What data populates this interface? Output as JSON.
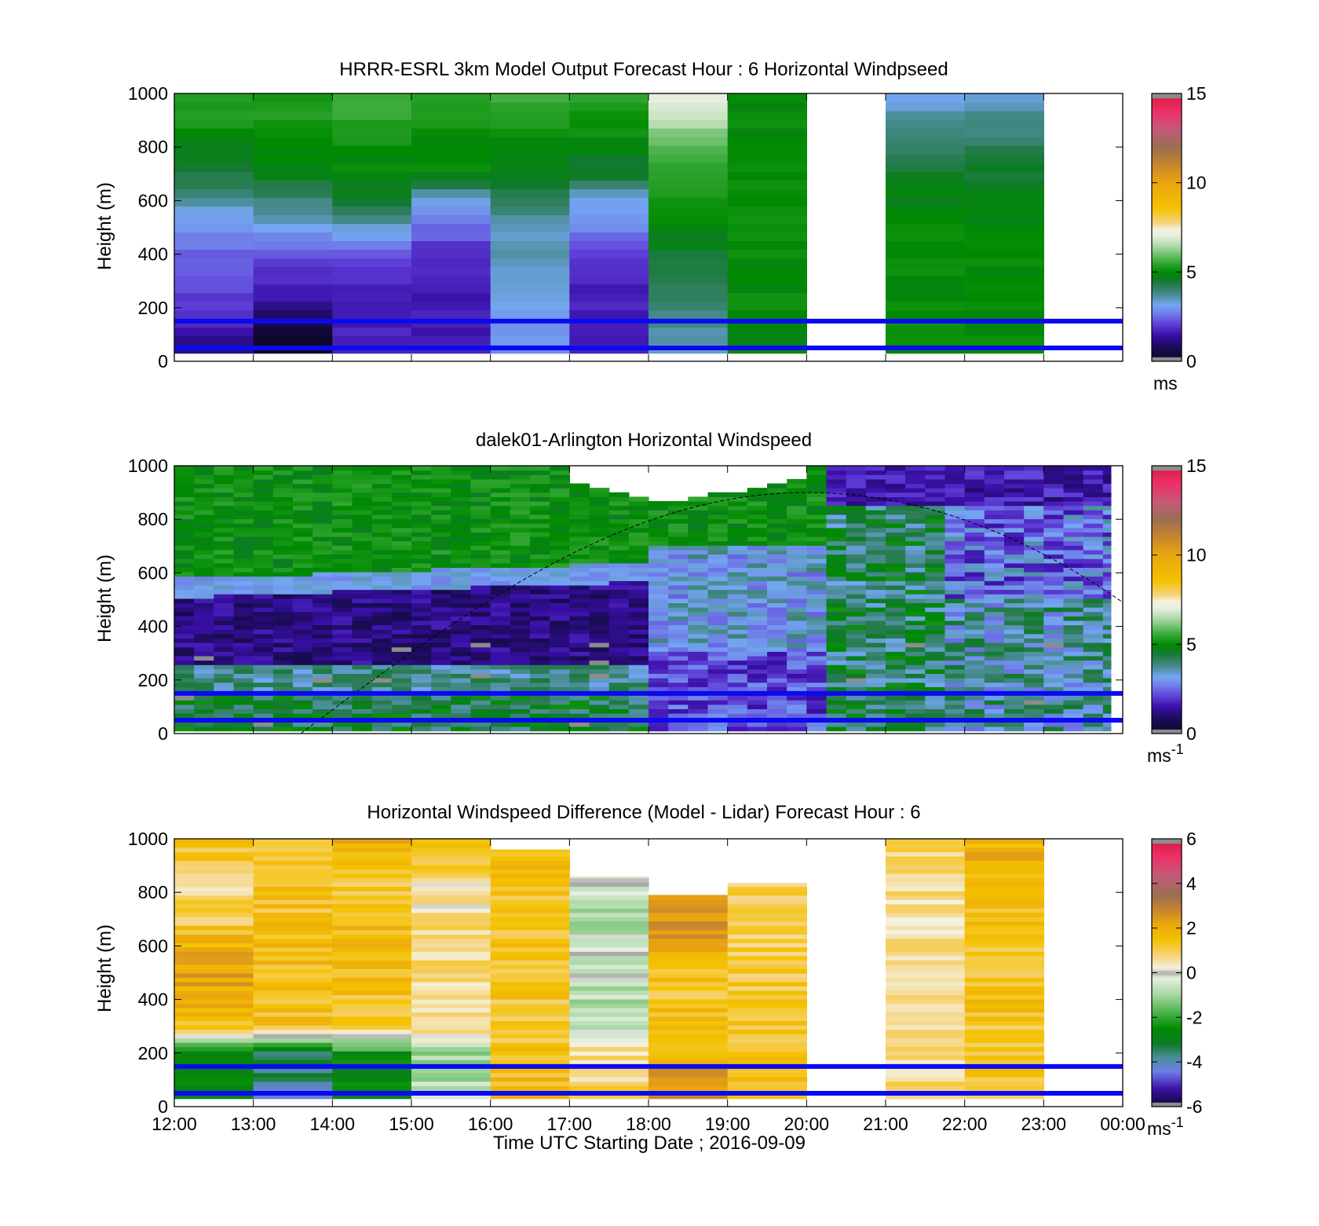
{
  "figure": {
    "xlabel": "Time UTC  Starting Date ; 2016-09-09",
    "xticks": [
      "12:00",
      "13:00",
      "14:00",
      "15:00",
      "16:00",
      "17:00",
      "18:00",
      "19:00",
      "20:00",
      "21:00",
      "22:00",
      "23:00",
      "00:00"
    ]
  },
  "chart_data": [
    {
      "type": "heatmap",
      "title": "HRRR-ESRL 3km Model Output   Forecast Hour : 6 Horizontal Windpseed",
      "ylabel": "Height (m)",
      "ylim": [
        0,
        1000
      ],
      "yticks": [
        "0",
        "200",
        "400",
        "600",
        "800",
        "1000"
      ],
      "x_hours": [
        12,
        24
      ],
      "colorbar": {
        "range": [
          0,
          15
        ],
        "ticks": [
          "0",
          "5",
          "10",
          "15"
        ],
        "unit": "ms"
      },
      "reference_lines_m": [
        50,
        150
      ],
      "columns": [
        {
          "hour": 12,
          "top": 1000,
          "profile": [
            0.9,
            1.4,
            2.0,
            2.2,
            2.4,
            3.0,
            3.6,
            4.5,
            4.8,
            5.2,
            5.4
          ]
        },
        {
          "hour": 13,
          "top": 1000,
          "profile": [
            -0.2,
            0.3,
            1.2,
            1.8,
            2.2,
            3.2,
            4.0,
            4.8,
            5.0,
            5.2,
            5.4
          ]
        },
        {
          "hour": 14,
          "top": 1000,
          "profile": [
            1.8,
            1.8,
            1.7,
            1.8,
            2.2,
            3.5,
            4.6,
            4.9,
            5.0,
            5.5,
            5.6
          ]
        },
        {
          "hour": 15,
          "top": 1000,
          "profile": [
            1.7,
            1.6,
            1.6,
            1.7,
            1.8,
            2.6,
            3.2,
            5.0,
            5.0,
            5.2,
            5.2
          ]
        },
        {
          "hour": 16,
          "top": 1000,
          "profile": [
            2.6,
            3.0,
            3.2,
            3.3,
            3.5,
            3.5,
            4.2,
            4.8,
            5.0,
            5.2,
            5.6
          ]
        },
        {
          "hour": 17,
          "top": 1000,
          "profile": [
            1.6,
            1.7,
            1.7,
            1.8,
            2.2,
            2.8,
            3.2,
            4.6,
            4.8,
            5.2,
            5.3
          ]
        },
        {
          "hour": 18,
          "top": 1000,
          "profile": [
            3.4,
            3.6,
            4.0,
            4.2,
            4.6,
            5.0,
            5.2,
            5.4,
            5.8,
            6.5,
            7.2
          ]
        },
        {
          "hour": 19,
          "top": 1000,
          "profile": [
            4.5,
            5.0,
            5.0,
            5.0,
            5.0,
            5.0,
            5.0,
            5.0,
            5.0,
            5.0,
            5.0
          ]
        },
        {
          "hour": 21,
          "top": 1000,
          "profile": [
            5.0,
            5.0,
            5.0,
            5.0,
            5.0,
            5.0,
            4.8,
            4.6,
            4.2,
            3.8,
            3.2
          ]
        },
        {
          "hour": 22,
          "top": 1000,
          "profile": [
            5.0,
            5.0,
            5.0,
            5.0,
            5.0,
            5.0,
            4.8,
            4.6,
            4.2,
            3.8,
            3.3
          ]
        }
      ]
    },
    {
      "type": "heatmap",
      "title": "dalek01-Arlington  Horizontal Windspeed",
      "ylabel": "Height (m)",
      "ylim": [
        0,
        1000
      ],
      "yticks": [
        "0",
        "200",
        "400",
        "600",
        "800",
        "1000"
      ],
      "x_hours": [
        12,
        24
      ],
      "colorbar": {
        "range": [
          0,
          15
        ],
        "ticks": [
          "0",
          "5",
          "10",
          "15"
        ],
        "unit": "ms",
        "unit_exponent": "-1"
      },
      "reference_lines_m": [
        50,
        150
      ],
      "overlay_curve": {
        "start_hour": 13.6,
        "peak_hour": 20.0,
        "peak_m": 900,
        "end_hour": 24.0,
        "end_m": 490
      },
      "columns_start_hour": 12,
      "column_width_h": 0.25,
      "data_end_hour": 23.85
    },
    {
      "type": "heatmap",
      "title": "Horizontal Windspeed Difference (Model - Lidar) Forecast Hour : 6",
      "ylabel": "Height (m)",
      "ylim": [
        0,
        1000
      ],
      "yticks": [
        "0",
        "200",
        "400",
        "600",
        "800",
        "1000"
      ],
      "x_hours": [
        12,
        24
      ],
      "colorbar": {
        "range": [
          -6,
          6
        ],
        "ticks": [
          "-6",
          "-4",
          "-2",
          "0",
          "2",
          "4",
          "6"
        ],
        "unit": "ms",
        "unit_exponent": "-1"
      },
      "reference_lines_m": [
        50,
        150
      ],
      "columns": [
        {
          "hour": 12,
          "top": 1000,
          "profile": [
            -2.6,
            -2.8,
            -2.5,
            1.4,
            2.0,
            2.2,
            2.0,
            1.0,
            0.8,
            1.2,
            1.3
          ]
        },
        {
          "hour": 13,
          "top": 1000,
          "profile": [
            -4.2,
            -3.6,
            -3.2,
            1.5,
            1.5,
            1.6,
            1.5,
            1.4,
            1.4,
            1.3,
            1.3
          ]
        },
        {
          "hour": 14,
          "top": 1000,
          "profile": [
            -2.8,
            -2.8,
            -2.4,
            1.2,
            1.4,
            1.6,
            1.8,
            1.5,
            1.2,
            1.5,
            2.0
          ]
        },
        {
          "hour": 15,
          "top": 1000,
          "profile": [
            -0.5,
            -0.8,
            -1.0,
            0.8,
            0.4,
            0.6,
            0.8,
            0.6,
            0.4,
            1.0,
            1.3
          ]
        },
        {
          "hour": 16,
          "top": 960,
          "profile": [
            1.5,
            1.6,
            1.4,
            1.2,
            1.3,
            1.4,
            1.3,
            1.4,
            1.3,
            1.5,
            1.6
          ]
        },
        {
          "hour": 17,
          "top": 860,
          "profile": [
            1.2,
            0.8,
            0.6,
            -0.6,
            -0.8,
            -0.5,
            -0.4,
            -1.0,
            -0.5,
            0.0,
            0.0
          ]
        },
        {
          "hour": 18,
          "top": 790,
          "profile": [
            2.2,
            2.6,
            1.8,
            1.6,
            1.4,
            1.4,
            2.2,
            2.6,
            2.4,
            2.4,
            2.4
          ]
        },
        {
          "hour": 19,
          "top": 835,
          "profile": [
            1.3,
            1.4,
            1.2,
            1.2,
            1.2,
            1.2,
            1.1,
            1.0,
            0.9,
            0.8,
            0.8
          ]
        },
        {
          "hour": 21,
          "top": 1000,
          "profile": [
            1.2,
            0.8,
            0.6,
            0.4,
            0.7,
            0.5,
            0.6,
            0.5,
            0.7,
            0.8,
            1.0
          ]
        },
        {
          "hour": 22,
          "top": 1000,
          "profile": [
            0.6,
            1.2,
            1.3,
            1.3,
            1.4,
            1.4,
            1.4,
            1.5,
            1.5,
            1.8,
            2.0
          ]
        }
      ]
    }
  ]
}
